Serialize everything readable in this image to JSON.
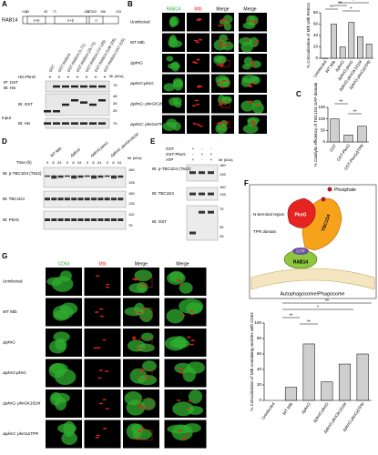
{
  "panels": {
    "A": {
      "label": "A",
      "protein": "RAB14",
      "positions": [
        "1",
        "18",
        "24",
        "45",
        "71",
        "124",
        "127",
        "132",
        "156",
        "215"
      ],
      "domains": [
        "α+β",
        "α+β",
        "α"
      ],
      "pulldown": "His-PknG",
      "plus": "+",
      "lanes": [
        "GST",
        "GST-RAB14",
        "GST-RAB14 (1-71)",
        "GST-RAB14 (25-71)",
        "GST-RAB14 (72-125)",
        "GST-RAB14 (128-155)",
        "GST-RAB14 (157-215)"
      ],
      "mw_title": "Mr (kDa)",
      "blots": [
        "IP: GST",
        "IB: His",
        "IB: GST",
        "Input",
        "IB: His"
      ],
      "markers": [
        "75",
        "48",
        "35",
        "25",
        "75"
      ]
    },
    "B": {
      "label": "B",
      "columns": [
        "RAB14",
        "Mtb",
        "Merge"
      ],
      "rows": [
        "Uninfected",
        "WT Mtb",
        "ΔpknG",
        "ΔpknG:pknG",
        "ΔpknG: pknGK181M",
        "ΔpknG: pknGΔTPR"
      ],
      "significance": [
        "**",
        "**",
        "*",
        "*"
      ],
      "chart": {
        "type": "bar",
        "y_label": "% Colocalization of Mtb with RAB14",
        "categories": [
          "Uninfected",
          "WT Mtb",
          "ΔpknG",
          "ΔpknG:pknG",
          "ΔpknG:pknGK181M",
          "ΔpknG:pknGΔTPR"
        ],
        "values": [
          0,
          60,
          20,
          63,
          38,
          25
        ],
        "colors": [
          "#ffffff",
          "#cfcfcf",
          "#cfcfcf",
          "#cfcfcf",
          "#cfcfcf",
          "#cfcfcf"
        ],
        "ylim": [
          0,
          80
        ],
        "yticks": [
          0,
          20,
          40,
          60,
          80
        ]
      }
    },
    "C": {
      "label": "C",
      "significance": [
        "**",
        "**"
      ],
      "chart": {
        "type": "bar",
        "y_label": "% Catalytic efficiency of TBC1D4 GAP domain",
        "categories": [
          "GST",
          "GST-PknG",
          "GST-PknGΔTPR"
        ],
        "values": [
          100,
          30,
          68
        ],
        "colors": [
          "#cfcfcf",
          "#cfcfcf",
          "#cfcfcf"
        ],
        "ylim": [
          0,
          150
        ],
        "yticks": [
          0,
          50,
          100,
          150
        ]
      }
    },
    "D": {
      "label": "D",
      "time": "Time (h)",
      "times": [
        "0",
        "8",
        "24"
      ],
      "groups": [
        "WT Mtb",
        "ΔpknG",
        "ΔpknG:pknG",
        "ΔpknG: pknGK181M"
      ],
      "mw_title": "Mr (kDa)",
      "blots": [
        "IB: p-TBC1D4 (T642)",
        "IB: TBC1D4",
        "IB: PknG"
      ],
      "markers": [
        "180",
        "135",
        "180",
        "135",
        "110",
        "75"
      ]
    },
    "E": {
      "label": "E",
      "conditions": [
        "GST",
        "GST-PknG",
        "ATP"
      ],
      "signs": [
        [
          "+",
          "-",
          "-"
        ],
        [
          "-",
          "+",
          "+"
        ],
        [
          "+",
          "-",
          "+"
        ]
      ],
      "mw_title": "Mr (kDa)",
      "blots": [
        "IB: p-TBC1D4 (T642)",
        "IB: TBC1D4",
        "IB: GST"
      ],
      "markers": [
        "180",
        "135",
        "180",
        "135",
        "75",
        "35",
        "25"
      ]
    },
    "F": {
      "label": "F",
      "legend": "Phosphate",
      "n_term": "N-terminal region",
      "tpr": "TPR domain",
      "tbc": "TBC1D4",
      "gtp": "GTP",
      "rab": "RAB14",
      "membrane": "Autophagosome/Phagosome",
      "pkng": "PknG"
    },
    "G": {
      "label": "G",
      "columns": [
        "CD63",
        "Mtb",
        "Merge"
      ],
      "rows": [
        "Uninfected",
        "WT Mtb",
        "ΔpknG",
        "ΔpknG:pknG",
        "ΔpknG: pknGK181M",
        "ΔpknG: pknGΔTPR"
      ],
      "significance": [
        "**",
        "**",
        "*",
        "**"
      ],
      "chart": {
        "type": "bar",
        "y_label": "% Colocalization of Mtb-containing vesicles with CD63",
        "categories": [
          "Uninfected",
          "WT Mtb",
          "ΔpknG",
          "ΔpknG:pknG",
          "ΔpknG:pknGK181M",
          "ΔpknG:pknGΔTPR"
        ],
        "values": [
          null,
          17,
          73,
          24,
          47,
          60
        ],
        "colors": [
          "#cfcfcf",
          "#cfcfcf",
          "#cfcfcf",
          "#cfcfcf",
          "#cfcfcf",
          "#cfcfcf"
        ],
        "ylim": [
          0,
          100
        ],
        "yticks": [
          0,
          20,
          40,
          60,
          80,
          100
        ]
      }
    }
  }
}
